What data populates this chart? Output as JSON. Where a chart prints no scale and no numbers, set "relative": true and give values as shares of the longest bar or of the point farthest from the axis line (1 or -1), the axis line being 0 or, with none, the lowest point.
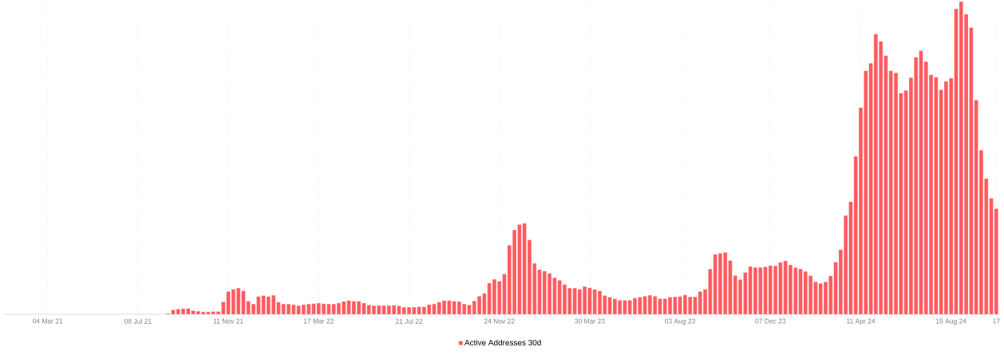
{
  "chart_data": {
    "type": "bar",
    "relative": true,
    "grid": "x",
    "legend": "bottom",
    "series": [
      {
        "name": "Active Addresses 30d",
        "color": "#ff5a5f",
        "values": [
          0.003,
          0.014,
          0.017,
          0.018,
          0.019,
          0.012,
          0.01,
          0.008,
          0.008,
          0.009,
          0.009,
          0.04,
          0.073,
          0.08,
          0.084,
          0.075,
          0.042,
          0.033,
          0.057,
          0.06,
          0.057,
          0.061,
          0.039,
          0.033,
          0.033,
          0.031,
          0.028,
          0.031,
          0.033,
          0.034,
          0.036,
          0.034,
          0.033,
          0.033,
          0.036,
          0.041,
          0.044,
          0.042,
          0.042,
          0.036,
          0.03,
          0.028,
          0.028,
          0.028,
          0.028,
          0.029,
          0.027,
          0.023,
          0.023,
          0.023,
          0.024,
          0.024,
          0.031,
          0.033,
          0.039,
          0.044,
          0.044,
          0.042,
          0.041,
          0.033,
          0.03,
          0.043,
          0.058,
          0.067,
          0.1,
          0.112,
          0.106,
          0.129,
          0.221,
          0.27,
          0.287,
          0.291,
          0.238,
          0.163,
          0.143,
          0.138,
          0.131,
          0.117,
          0.109,
          0.095,
          0.084,
          0.084,
          0.08,
          0.089,
          0.085,
          0.08,
          0.075,
          0.06,
          0.055,
          0.05,
          0.045,
          0.045,
          0.045,
          0.052,
          0.055,
          0.058,
          0.061,
          0.058,
          0.05,
          0.05,
          0.055,
          0.056,
          0.057,
          0.062,
          0.056,
          0.056,
          0.073,
          0.08,
          0.145,
          0.192,
          0.195,
          0.198,
          0.172,
          0.124,
          0.111,
          0.134,
          0.153,
          0.15,
          0.15,
          0.152,
          0.156,
          0.155,
          0.166,
          0.171,
          0.158,
          0.149,
          0.145,
          0.137,
          0.124,
          0.104,
          0.099,
          0.104,
          0.123,
          0.167,
          0.207,
          0.316,
          0.36,
          0.505,
          0.661,
          0.779,
          0.803,
          0.896,
          0.873,
          0.827,
          0.779,
          0.772,
          0.707,
          0.716,
          0.757,
          0.822,
          0.843,
          0.808,
          0.766,
          0.758,
          0.718,
          0.745,
          0.755,
          0.977,
          1,
          0.96,
          0.917,
          0.685,
          0.525,
          0.434,
          0.371,
          0.338
        ]
      }
    ],
    "x": [
      "2021-08-19",
      "2021-08-26",
      "2021-09-02",
      "2021-09-09",
      "2021-09-16",
      "2021-09-23",
      "2021-09-30",
      "2021-10-07",
      "2021-10-14",
      "2021-10-21",
      "2021-10-28",
      "2021-11-04",
      "2021-11-11",
      "2021-11-18",
      "2021-11-25",
      "2021-12-02",
      "2021-12-09",
      "2021-12-16",
      "2021-12-23",
      "2021-12-30",
      "2022-01-06",
      "2022-01-13",
      "2022-01-20",
      "2022-01-27",
      "2022-02-03",
      "2022-02-10",
      "2022-02-17",
      "2022-02-24",
      "2022-03-03",
      "2022-03-10",
      "2022-03-17",
      "2022-03-24",
      "2022-03-31",
      "2022-04-07",
      "2022-04-14",
      "2022-04-21",
      "2022-04-28",
      "2022-05-05",
      "2022-05-12",
      "2022-05-19",
      "2022-05-26",
      "2022-06-02",
      "2022-06-09",
      "2022-06-16",
      "2022-06-23",
      "2022-06-30",
      "2022-07-07",
      "2022-07-14",
      "2022-07-21",
      "2022-07-28",
      "2022-08-04",
      "2022-08-11",
      "2022-08-18",
      "2022-08-25",
      "2022-09-01",
      "2022-09-08",
      "2022-09-15",
      "2022-09-22",
      "2022-09-29",
      "2022-10-06",
      "2022-10-13",
      "2022-10-20",
      "2022-10-27",
      "2022-11-03",
      "2022-11-10",
      "2022-11-17",
      "2022-11-24",
      "2022-12-01",
      "2022-12-08",
      "2022-12-15",
      "2022-12-22",
      "2022-12-29",
      "2023-01-05",
      "2023-01-12",
      "2023-01-19",
      "2023-01-26",
      "2023-02-02",
      "2023-02-09",
      "2023-02-16",
      "2023-02-23",
      "2023-03-02",
      "2023-03-09",
      "2023-03-16",
      "2023-03-23",
      "2023-03-30",
      "2023-04-06",
      "2023-04-13",
      "2023-04-20",
      "2023-04-27",
      "2023-05-04",
      "2023-05-11",
      "2023-05-18",
      "2023-05-25",
      "2023-06-01",
      "2023-06-08",
      "2023-06-15",
      "2023-06-22",
      "2023-06-29",
      "2023-07-06",
      "2023-07-13",
      "2023-07-20",
      "2023-07-27",
      "2023-08-03",
      "2023-08-10",
      "2023-08-17",
      "2023-08-24",
      "2023-08-31",
      "2023-09-07",
      "2023-09-14",
      "2023-09-21",
      "2023-09-28",
      "2023-10-05",
      "2023-10-12",
      "2023-10-19",
      "2023-10-26",
      "2023-11-02",
      "2023-11-09",
      "2023-11-16",
      "2023-11-23",
      "2023-11-30",
      "2023-12-07",
      "2023-12-14",
      "2023-12-21",
      "2023-12-28",
      "2024-01-04",
      "2024-01-11",
      "2024-01-18",
      "2024-01-25",
      "2024-02-01",
      "2024-02-08",
      "2024-02-15",
      "2024-02-22",
      "2024-02-29",
      "2024-03-07",
      "2024-03-14",
      "2024-03-21",
      "2024-03-28",
      "2024-04-04",
      "2024-04-11",
      "2024-04-18",
      "2024-04-25",
      "2024-05-02",
      "2024-05-09",
      "2024-05-16",
      "2024-05-23",
      "2024-05-30",
      "2024-06-06",
      "2024-06-13",
      "2024-06-20",
      "2024-06-27",
      "2024-07-04",
      "2024-07-11",
      "2024-07-18",
      "2024-07-25",
      "2024-08-01",
      "2024-08-08",
      "2024-08-15",
      "2024-08-22",
      "2024-08-29",
      "2024-09-05",
      "2024-09-12",
      "2024-09-19",
      "2024-09-26",
      "2024-10-03",
      "2024-10-10",
      "2024-10-17"
    ],
    "xlim": [
      "2021-01-01",
      "2024-10-20"
    ],
    "xticks": [
      {
        "value": "2021-03-04",
        "label": "04 Mar 21"
      },
      {
        "value": "2021-07-08",
        "label": "08 Jul 21"
      },
      {
        "value": "2021-11-11",
        "label": "11 Nov 21"
      },
      {
        "value": "2022-03-17",
        "label": "17 Mar 22"
      },
      {
        "value": "2022-07-21",
        "label": "21 Jul 22"
      },
      {
        "value": "2022-11-24",
        "label": "24 Nov 22"
      },
      {
        "value": "2023-03-30",
        "label": "30 Mar 23"
      },
      {
        "value": "2023-08-03",
        "label": "03 Aug 23"
      },
      {
        "value": "2023-12-07",
        "label": "07 Dec 23"
      },
      {
        "value": "2024-04-11",
        "label": "11 Apr 24"
      },
      {
        "value": "2024-08-15",
        "label": "15 Aug 24"
      },
      {
        "value": "2024-10-17",
        "label": "17"
      }
    ]
  }
}
